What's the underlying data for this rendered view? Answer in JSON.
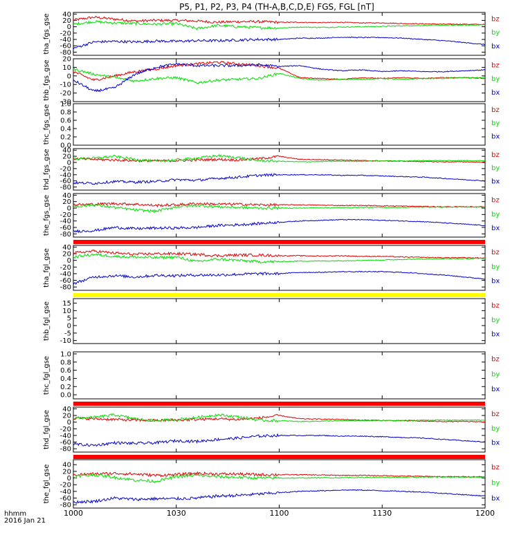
{
  "title": "P5, P1, P2, P3, P4 (TH-A,B,C,D,E) FGS, FGL [nT]",
  "x_axis": {
    "ticks": [
      "1000",
      "1030",
      "1100",
      "1130",
      "1200"
    ],
    "label_line1": "hhmm",
    "label_line2": "2016 Jan 21"
  },
  "legend_labels": {
    "bz": "bz",
    "by": "by",
    "bx": "bx"
  },
  "colors": {
    "bx": "#0000cc",
    "by": "#00dd00",
    "bz": "#dd0000",
    "red_bar": "#ff0000",
    "yellow_bar": "#ffff00"
  },
  "chart_data": [
    {
      "type": "line",
      "ylabel": "tha_fgs_gse",
      "ylim": [
        -90,
        45
      ],
      "yticks": [
        "40",
        "20",
        "0",
        "-20",
        "-40",
        "-60",
        "-80"
      ],
      "x": [
        "1000",
        "1006",
        "1012",
        "1018",
        "1024",
        "1030",
        "1036",
        "1042",
        "1048",
        "1054",
        "1100",
        "1106",
        "1112",
        "1118",
        "1124",
        "1130",
        "1136",
        "1142",
        "1148",
        "1154",
        "1200"
      ],
      "series": [
        {
          "name": "bz",
          "values": [
            21,
            30,
            24,
            18,
            20,
            20,
            18,
            14,
            16,
            16,
            14,
            14,
            13,
            14,
            12,
            12,
            10,
            9,
            8,
            8,
            7
          ]
        },
        {
          "name": "by",
          "values": [
            8,
            16,
            12,
            10,
            8,
            10,
            -6,
            4,
            0,
            -3,
            -4,
            -1,
            -2,
            -1,
            0,
            1,
            3,
            4,
            5,
            5,
            6
          ]
        },
        {
          "name": "bx",
          "values": [
            -68,
            -48,
            -46,
            -48,
            -45,
            -46,
            -44,
            -44,
            -42,
            -40,
            -40,
            -36,
            -36,
            -33,
            -34,
            -34,
            -36,
            -40,
            -44,
            -50,
            -56
          ]
        }
      ]
    },
    {
      "type": "line",
      "ylabel": "thb_fgs_gse",
      "ylim": [
        -30,
        20
      ],
      "yticks": [
        "20",
        "10",
        "0",
        "-10",
        "-20",
        "-30"
      ],
      "x": [
        "1000",
        "1006",
        "1012",
        "1018",
        "1024",
        "1030",
        "1036",
        "1042",
        "1048",
        "1054",
        "1100",
        "1106",
        "1112",
        "1118",
        "1124",
        "1130",
        "1136",
        "1142",
        "1148",
        "1154",
        "1200"
      ],
      "series": [
        {
          "name": "bz",
          "values": [
            5,
            -5,
            0,
            5,
            8,
            12,
            14,
            16,
            14,
            12,
            9,
            -2,
            -3,
            -4,
            -2,
            -3,
            -2,
            -3,
            -2,
            -2,
            -3
          ]
        },
        {
          "name": "by",
          "values": [
            8,
            2,
            -2,
            -6,
            -3,
            -2,
            -8,
            -5,
            -4,
            -3,
            3,
            -3,
            -5,
            -4,
            -4,
            -3,
            -4,
            -3,
            -3,
            -2,
            -2
          ]
        },
        {
          "name": "bx",
          "values": [
            -5,
            -18,
            -14,
            2,
            10,
            14,
            12,
            12,
            12,
            13,
            11,
            12,
            8,
            6,
            7,
            5,
            6,
            5,
            5,
            6,
            7
          ]
        }
      ]
    },
    {
      "type": "line",
      "ylabel": "thc_fgs_gse",
      "ylim": [
        0,
        1
      ],
      "yticks": [
        "1.0",
        "0.8",
        "0.6",
        "0.4",
        "0.2",
        "0.0"
      ],
      "x": [],
      "series": []
    },
    {
      "type": "line",
      "ylabel": "thd_fgs_gse",
      "ylim": [
        -90,
        45
      ],
      "yticks": [
        "40",
        "20",
        "0",
        "-20",
        "-40",
        "-60",
        "-80"
      ],
      "x": [
        "1000",
        "1006",
        "1012",
        "1018",
        "1024",
        "1030",
        "1036",
        "1042",
        "1048",
        "1054",
        "1100",
        "1106",
        "1112",
        "1118",
        "1124",
        "1130",
        "1136",
        "1142",
        "1148",
        "1154",
        "1200"
      ],
      "series": [
        {
          "name": "bz",
          "values": [
            12,
            10,
            8,
            6,
            5,
            6,
            8,
            10,
            8,
            12,
            20,
            10,
            9,
            8,
            6,
            5,
            4,
            3,
            2,
            2,
            1
          ]
        },
        {
          "name": "by",
          "values": [
            12,
            14,
            20,
            10,
            4,
            8,
            14,
            22,
            16,
            6,
            4,
            2,
            3,
            4,
            4,
            5,
            5,
            6,
            6,
            6,
            6
          ]
        },
        {
          "name": "bx",
          "values": [
            -66,
            -68,
            -62,
            -64,
            -62,
            -56,
            -58,
            -52,
            -48,
            -42,
            -40,
            -40,
            -40,
            -42,
            -42,
            -44,
            -46,
            -48,
            -52,
            -56,
            -60
          ]
        }
      ]
    },
    {
      "type": "line",
      "ylabel": "the_fgs_gse",
      "ylim": [
        -90,
        45
      ],
      "yticks": [
        "40",
        "20",
        "0",
        "-20",
        "-40",
        "-60",
        "-80"
      ],
      "x": [
        "1000",
        "1006",
        "1012",
        "1018",
        "1024",
        "1030",
        "1036",
        "1042",
        "1048",
        "1054",
        "1100",
        "1106",
        "1112",
        "1118",
        "1124",
        "1130",
        "1136",
        "1142",
        "1148",
        "1154",
        "1200"
      ],
      "series": [
        {
          "name": "bz",
          "values": [
            10,
            12,
            14,
            12,
            8,
            10,
            14,
            12,
            12,
            10,
            10,
            10,
            9,
            8,
            8,
            7,
            6,
            5,
            4,
            4,
            4
          ]
        },
        {
          "name": "by",
          "values": [
            4,
            10,
            2,
            -6,
            -10,
            4,
            8,
            4,
            2,
            0,
            0,
            0,
            1,
            1,
            2,
            2,
            2,
            3,
            3,
            3,
            3
          ]
        },
        {
          "name": "bx",
          "values": [
            -72,
            -70,
            -60,
            -64,
            -62,
            -62,
            -60,
            -54,
            -52,
            -48,
            -44,
            -40,
            -38,
            -36,
            -36,
            -38,
            -40,
            -42,
            -46,
            -50,
            -54
          ]
        }
      ]
    },
    {
      "type": "line",
      "ylabel": "tha_fgl_gse",
      "ylim": [
        -90,
        45
      ],
      "yticks": [
        "40",
        "20",
        "0",
        "-20",
        "-40",
        "-60",
        "-80"
      ],
      "x": [
        "1000",
        "1006",
        "1012",
        "1018",
        "1024",
        "1030",
        "1036",
        "1042",
        "1048",
        "1054",
        "1100",
        "1106",
        "1112",
        "1118",
        "1124",
        "1130",
        "1136",
        "1142",
        "1148",
        "1154",
        "1200"
      ],
      "series": [
        {
          "name": "bz",
          "values": [
            22,
            28,
            22,
            18,
            20,
            20,
            18,
            14,
            16,
            16,
            14,
            14,
            13,
            14,
            12,
            12,
            10,
            9,
            8,
            8,
            7
          ]
        },
        {
          "name": "by",
          "values": [
            10,
            18,
            12,
            10,
            8,
            10,
            -4,
            4,
            0,
            -4,
            -4,
            -2,
            -2,
            -1,
            0,
            1,
            3,
            4,
            5,
            5,
            6
          ]
        },
        {
          "name": "bx",
          "values": [
            -70,
            -50,
            -46,
            -50,
            -45,
            -46,
            -44,
            -44,
            -42,
            -40,
            -40,
            -36,
            -36,
            -34,
            -34,
            -34,
            -36,
            -40,
            -44,
            -50,
            -56
          ]
        }
      ]
    },
    {
      "type": "line",
      "ylabel": "thb_fgl_gse",
      "ylim": [
        -12,
        18
      ],
      "yticks": [
        "15",
        "10",
        "5",
        "0",
        "-5",
        "-10"
      ],
      "x": [],
      "series": []
    },
    {
      "type": "line",
      "ylabel": "thc_fgl_gse",
      "ylim": [
        -0.1,
        1.05
      ],
      "yticks": [
        "1.0",
        "0.8",
        "0.6",
        "0.4",
        "0.2",
        "0.0"
      ],
      "x": [],
      "series": []
    },
    {
      "type": "line",
      "ylabel": "thd_fgl_gse",
      "ylim": [
        -90,
        45
      ],
      "yticks": [
        "40",
        "20",
        "0",
        "-20",
        "-40",
        "-60",
        "-80"
      ],
      "x": [
        "1000",
        "1006",
        "1012",
        "1018",
        "1024",
        "1030",
        "1036",
        "1042",
        "1048",
        "1054",
        "1100",
        "1106",
        "1112",
        "1118",
        "1124",
        "1130",
        "1136",
        "1142",
        "1148",
        "1154",
        "1200"
      ],
      "series": [
        {
          "name": "bz",
          "values": [
            12,
            10,
            8,
            6,
            5,
            6,
            8,
            10,
            8,
            12,
            20,
            10,
            9,
            8,
            6,
            5,
            4,
            3,
            2,
            2,
            1
          ]
        },
        {
          "name": "by",
          "values": [
            12,
            14,
            22,
            10,
            4,
            8,
            14,
            22,
            16,
            6,
            4,
            2,
            3,
            4,
            4,
            5,
            5,
            6,
            6,
            6,
            6
          ]
        },
        {
          "name": "bx",
          "values": [
            -66,
            -70,
            -62,
            -64,
            -62,
            -56,
            -58,
            -52,
            -48,
            -42,
            -40,
            -40,
            -40,
            -42,
            -42,
            -44,
            -46,
            -48,
            -52,
            -56,
            -60
          ]
        }
      ]
    },
    {
      "type": "line",
      "ylabel": "the_fgl_gse",
      "ylim": [
        -90,
        55
      ],
      "yticks": [
        "40",
        "20",
        "0",
        "-20",
        "-40",
        "-60",
        "-80"
      ],
      "x": [
        "1000",
        "1006",
        "1012",
        "1018",
        "1024",
        "1030",
        "1036",
        "1042",
        "1048",
        "1054",
        "1100",
        "1106",
        "1112",
        "1118",
        "1124",
        "1130",
        "1136",
        "1142",
        "1148",
        "1154",
        "1200"
      ],
      "series": [
        {
          "name": "bz",
          "values": [
            10,
            12,
            14,
            12,
            8,
            10,
            14,
            12,
            12,
            10,
            10,
            10,
            9,
            8,
            8,
            7,
            6,
            5,
            4,
            4,
            4
          ]
        },
        {
          "name": "by",
          "values": [
            4,
            10,
            2,
            -6,
            -10,
            4,
            8,
            4,
            2,
            0,
            0,
            0,
            1,
            1,
            2,
            2,
            2,
            3,
            3,
            3,
            3
          ]
        },
        {
          "name": "bx",
          "values": [
            -72,
            -70,
            -60,
            -64,
            -62,
            -62,
            -60,
            -54,
            -52,
            -48,
            -44,
            -40,
            -38,
            -36,
            -36,
            -38,
            -40,
            -42,
            -46,
            -50,
            -54
          ]
        }
      ]
    }
  ]
}
